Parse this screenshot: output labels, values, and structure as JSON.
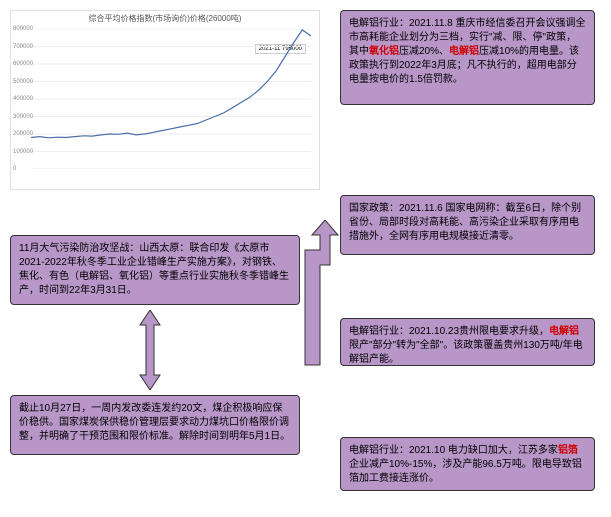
{
  "chart": {
    "title": "综合平均价格指数(市场询价)价格(26000吨)",
    "tooltip": "2021-11  795000",
    "type": "line",
    "line_color": "#4a6ea8",
    "grid_color": "#eeeeee",
    "background_color": "#ffffff",
    "ylim": [
      0,
      800000
    ],
    "y_ticks": [
      0,
      100000,
      200000,
      300000,
      400000,
      500000,
      600000,
      700000,
      800000
    ],
    "values": [
      180000,
      185000,
      178000,
      182000,
      180000,
      185000,
      190000,
      188000,
      195000,
      200000,
      198000,
      205000,
      195000,
      200000,
      210000,
      220000,
      230000,
      240000,
      250000,
      260000,
      280000,
      300000,
      320000,
      350000,
      380000,
      410000,
      450000,
      500000,
      560000,
      640000,
      720000,
      795000,
      760000
    ]
  },
  "boxes": {
    "right1_prefix": "电解铝行业：2021.11.8 重庆市经信委召开会议强调全市高耗能企业划分为三档，实行\"减、限、停\"政策，其中",
    "right1_red1": "氧化铝",
    "right1_mid": "压减20%、",
    "right1_red2": "电解铝",
    "right1_suffix": "压减10%的用电量。该政策执行到2022年3月底；凡不执行的，超用电部分电量按电价的1.5倍罚款。",
    "right2": "国家政策：2021.11.6 国家电网称：截至6日，除个别省份、局部时段对高耗能、高污染企业采取有序用电措施外，全网有序用电规模接近清零。",
    "right3_prefix": "电解铝行业：2021.10.23贵州限电要求升级，",
    "right3_red": "电解铝",
    "right3_suffix": "限产\"部分\"转为\"全部\"。该政策覆盖贵州130万吨/年电解铝产能。",
    "right4_prefix": "电解铝行业：2021.10 电力缺口加大，江苏多家",
    "right4_red": "铝箔",
    "right4_suffix": "企业减产10%-15%，涉及产能96.5万吨。限电导致铝箔加工费接连涨价。",
    "left1": "11月大气污染防治攻坚战：山西太原：联合印发《太原市2021-2022年秋冬季工业企业错峰生产实施方案》，对钢铁、焦化、有色（电解铝、氧化铝）等重点行业实施秋冬季错峰生产，时间到22年3月31日。",
    "left2": "截止10月27日，一周内发改委连发约20文，煤企积极响应保价稳供。国家煤炭保供稳价管理层要求动力煤坑口价格限价调整，并明确了干预范围和限价标准。解除时间到明年5月1日。"
  },
  "box_style": {
    "background": "#b896c8",
    "border_color": "#333333",
    "text_color": "#000000",
    "highlight_color": "#d00000"
  }
}
